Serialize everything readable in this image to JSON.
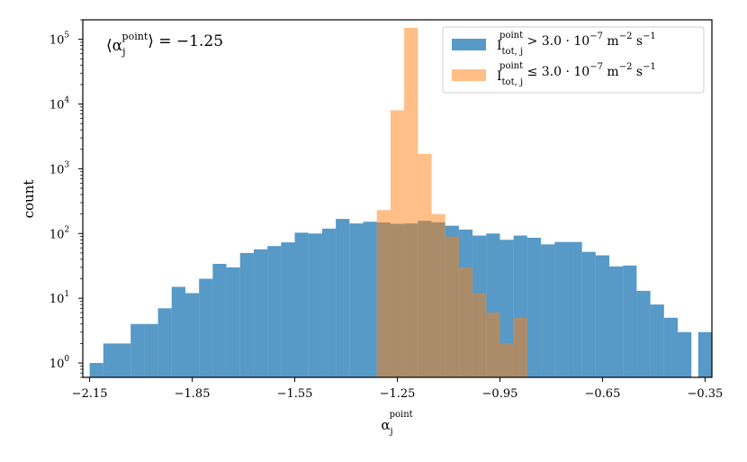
{
  "chart_data": {
    "type": "histogram",
    "yscale": "log",
    "xlabel": "α_j^point",
    "ylabel": "count",
    "xlim": [
      -2.17,
      -0.33
    ],
    "ylim": [
      0.6,
      200000
    ],
    "bin_edges_start": -2.15,
    "bin_width": 0.04,
    "xticks": [
      -2.15,
      -1.85,
      -1.55,
      -1.25,
      -0.95,
      -0.65,
      -0.35
    ],
    "xtick_labels": [
      "−2.15",
      "−1.85",
      "−1.55",
      "−1.25",
      "−0.95",
      "−0.65",
      "−0.35"
    ],
    "yticks": [
      1,
      10,
      100,
      1000,
      10000,
      100000
    ],
    "ytick_labels": [
      "10^0",
      "10^1",
      "10^2",
      "10^3",
      "10^4",
      "10^5"
    ],
    "annotation": "⟨α_j^point⟩ = −1.25",
    "legend_position": "top-right",
    "series": [
      {
        "name": "I_tot,j^point > 3.0 · 10^−7 m^−2 s^−1",
        "color": "#1f77b4",
        "alpha": 0.75,
        "bin_starts": [
          -2.15,
          -2.11,
          -2.07,
          -2.03,
          -1.99,
          -1.95,
          -1.91,
          -1.87,
          -1.83,
          -1.79,
          -1.75,
          -1.71,
          -1.67,
          -1.63,
          -1.59,
          -1.55,
          -1.51,
          -1.47,
          -1.43,
          -1.39,
          -1.35,
          -1.31,
          -1.27,
          -1.23,
          -1.19,
          -1.15,
          -1.11,
          -1.07,
          -1.03,
          -0.99,
          -0.95,
          -0.91,
          -0.87,
          -0.83,
          -0.79,
          -0.75,
          -0.71,
          -0.67,
          -0.63,
          -0.59,
          -0.55,
          -0.51,
          -0.47,
          -0.43,
          -0.39
        ],
        "values": [
          1,
          2,
          2,
          4,
          4,
          7,
          15,
          12,
          20,
          34,
          30,
          50,
          57,
          64,
          73,
          103,
          100,
          119,
          168,
          143,
          152,
          148,
          141,
          143,
          157,
          149,
          132,
          115,
          93,
          100,
          80,
          93,
          86,
          68,
          74,
          74,
          52,
          46,
          31,
          32,
          13,
          8,
          5,
          3,
          0
        ],
        "extra_bins": [
          {
            "x0": -0.37,
            "value": 3
          }
        ]
      },
      {
        "name": "I_tot,j^point ≤ 3.0 · 10^−7 m^−2 s^−1",
        "color": "#ff7f0e",
        "alpha": 0.5,
        "bin_starts": [
          -1.31,
          -1.27,
          -1.23,
          -1.19,
          -1.15,
          -1.11,
          -1.07,
          -1.03,
          -0.99,
          -0.95,
          -0.91
        ],
        "values": [
          230,
          8000,
          150000,
          1700,
          200,
          90,
          30,
          12,
          6,
          2,
          5
        ]
      }
    ]
  }
}
